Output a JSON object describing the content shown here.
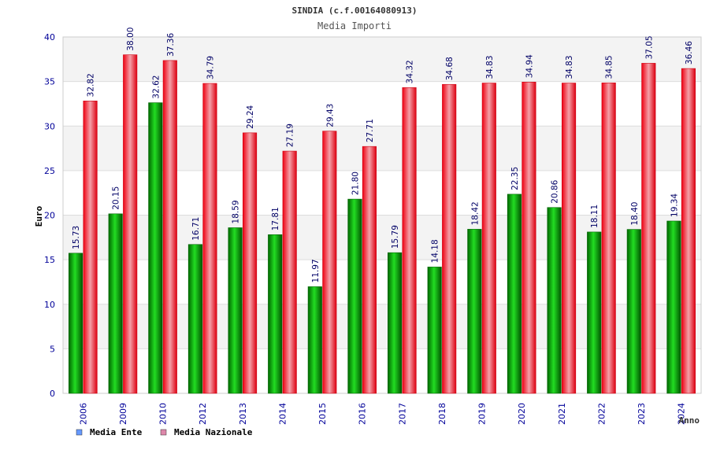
{
  "chart_data": {
    "type": "bar",
    "title": "SINDIA (c.f.00164080913)",
    "subtitle": "Media Importi",
    "xlabel": "Anno",
    "ylabel": "Euro",
    "ylim": [
      0,
      40
    ],
    "yticks": [
      0,
      5,
      10,
      15,
      20,
      25,
      30,
      35,
      40
    ],
    "grid": true,
    "legend_position": "bottom-left",
    "categories": [
      "2006",
      "2009",
      "2010",
      "2012",
      "2013",
      "2014",
      "2015",
      "2016",
      "2017",
      "2018",
      "2019",
      "2020",
      "2021",
      "2022",
      "2023",
      "2024"
    ],
    "series": [
      {
        "name": "Media Ente",
        "color": "#00a000",
        "legend_color": "#6699ff",
        "values": [
          15.73,
          20.15,
          32.62,
          16.71,
          18.59,
          17.81,
          11.97,
          21.8,
          15.79,
          14.18,
          18.42,
          22.35,
          20.86,
          18.11,
          18.4,
          19.34
        ],
        "labels": [
          "15.73",
          "20.15",
          "32.62",
          "16.71",
          "18.59",
          "17.81",
          "11.97",
          "21.80",
          "15.79",
          "14.18",
          "18.42",
          "22.35",
          "20.86",
          "18.11",
          "18.40",
          "19.34"
        ]
      },
      {
        "name": "Media Nazionale",
        "color": "#ee1122",
        "legend_color": "#dd88aa",
        "values": [
          32.82,
          38.0,
          37.36,
          34.79,
          29.24,
          27.19,
          29.43,
          27.71,
          34.32,
          34.68,
          34.83,
          34.94,
          34.83,
          34.85,
          37.05,
          36.46
        ],
        "labels": [
          "32.82",
          "38.00",
          "37.36",
          "34.79",
          "29.24",
          "27.19",
          "29.43",
          "27.71",
          "34.32",
          "34.68",
          "34.83",
          "34.94",
          "34.83",
          "34.85",
          "37.05",
          "36.46"
        ]
      }
    ]
  }
}
